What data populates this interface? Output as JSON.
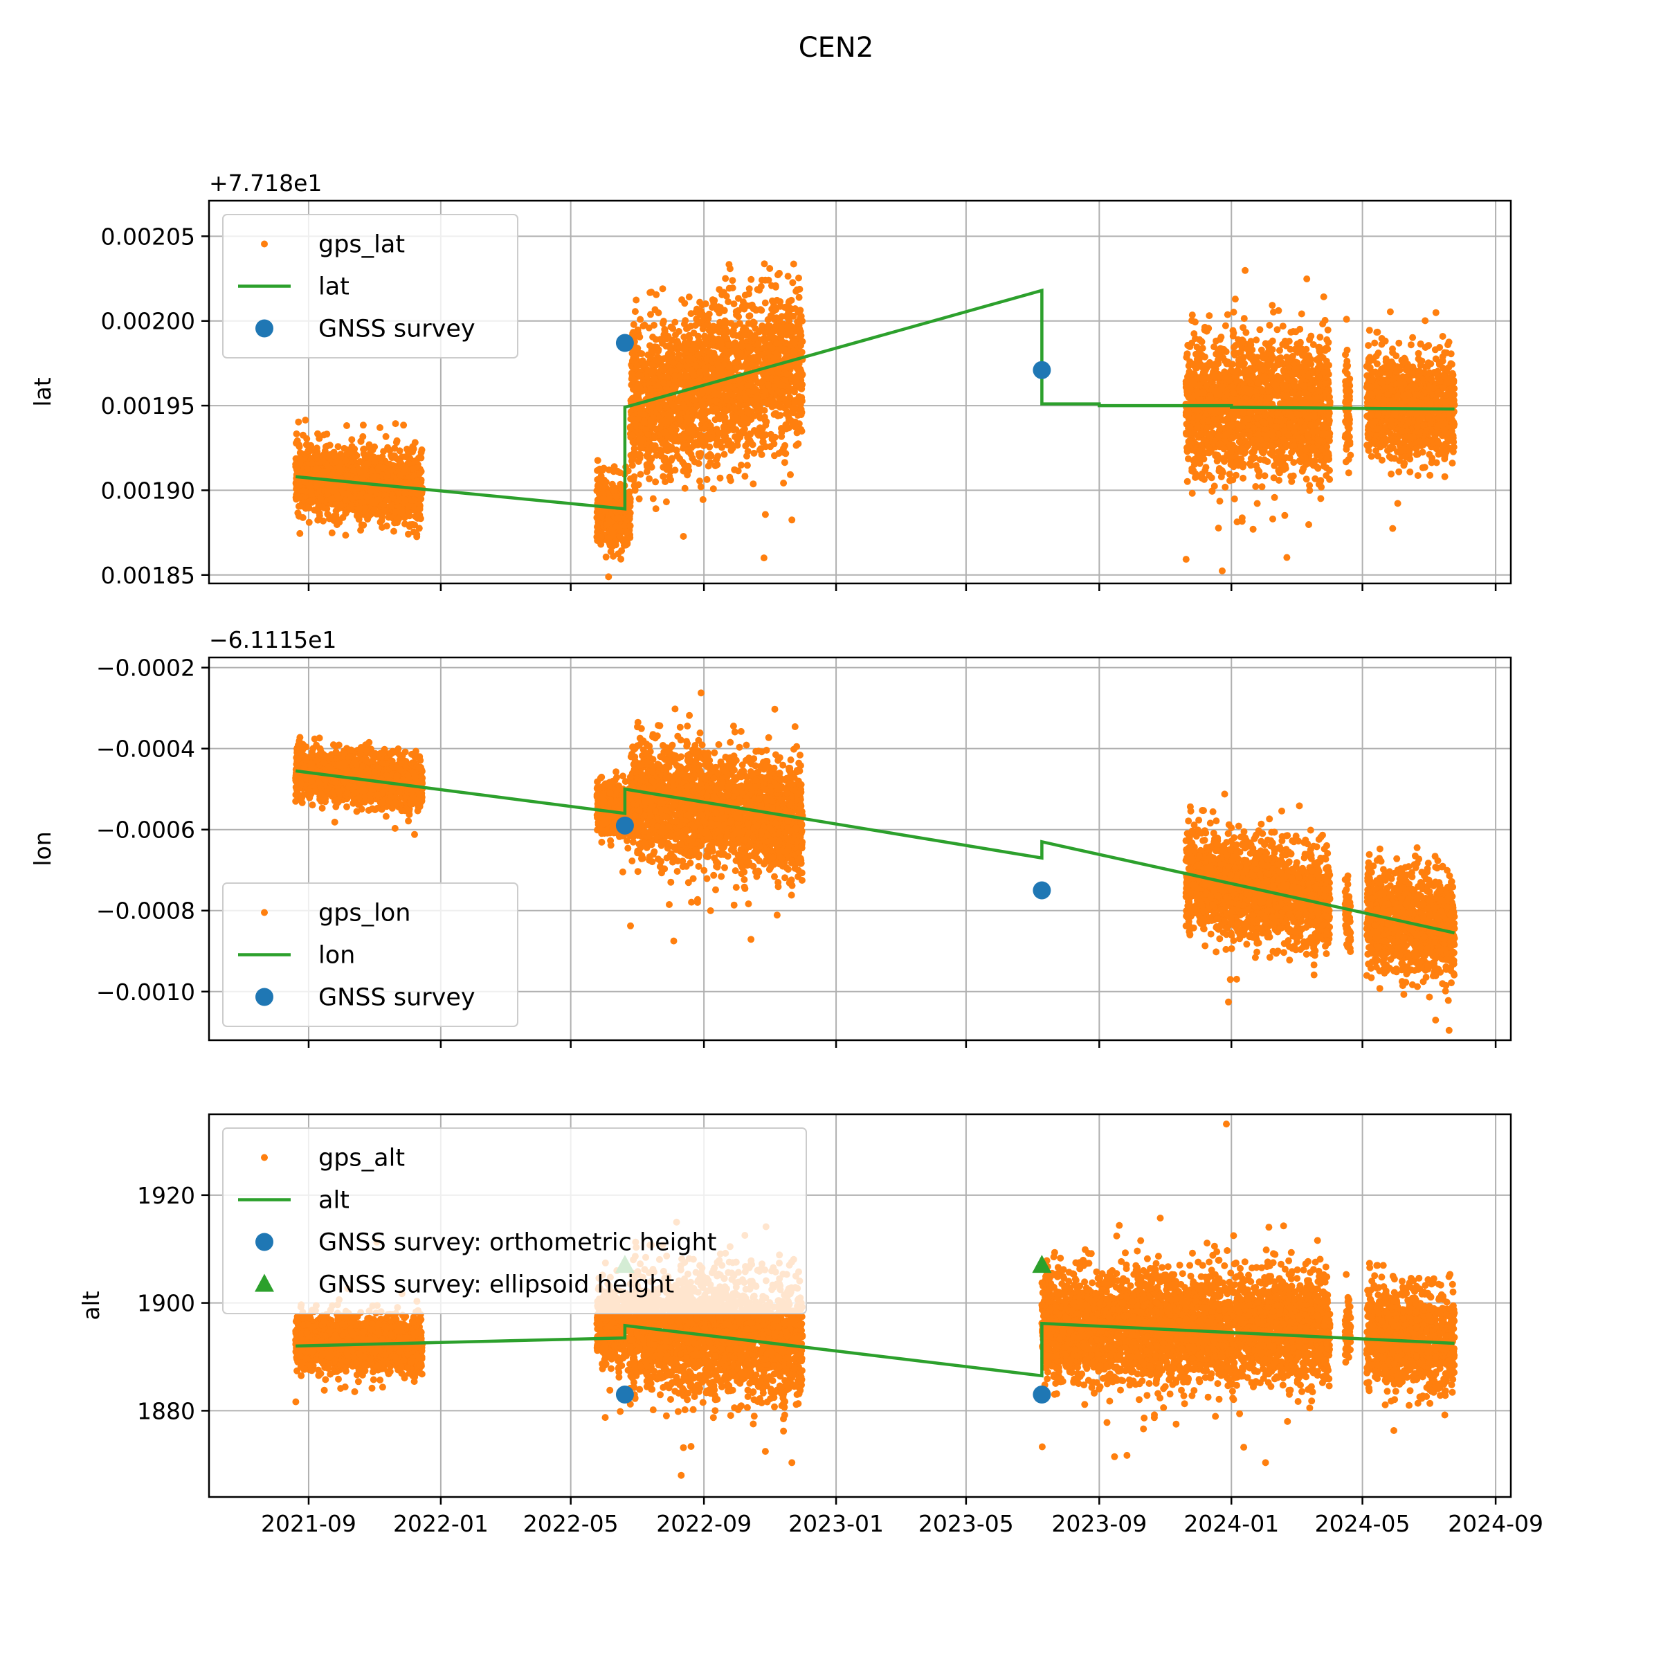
{
  "title": "CEN2",
  "chart_data": [
    {
      "type": "scatter",
      "key": "lat",
      "ylabel": "lat",
      "offset_label": "+7.718e1",
      "offset_value": 77.18,
      "ylim": [
        0.001845,
        0.002071
      ],
      "yticks": [
        0.00185,
        0.0019,
        0.00195,
        0.002,
        0.00205
      ],
      "ytick_labels": [
        "0.00185",
        "0.00190",
        "0.00195",
        "0.00200",
        "0.00205"
      ],
      "xlim": [
        "2021-06-01",
        "2024-09-15"
      ],
      "legend_position": "upper-left",
      "legend": [
        "gps_lat",
        "lat",
        "GNSS survey"
      ],
      "series": [
        {
          "name": "gps_lat",
          "kind": "points",
          "color": "#ff7f0e",
          "clusters": [
            {
              "x_range": [
                "2021-08-20",
                "2021-12-15"
              ],
              "center": [
                0.001908,
                0.0019
              ],
              "spread": 1e-05
            },
            {
              "x_range": [
                "2022-05-25",
                "2022-06-25"
              ],
              "center": [
                0.001888,
                0.001885
              ],
              "spread": 1e-05
            },
            {
              "x_range": [
                "2022-06-25",
                "2022-12-01"
              ],
              "center": [
                0.00195,
                0.001975
              ],
              "spread": 2.2e-05
            },
            {
              "x_range": [
                "2023-11-20",
                "2024-04-01"
              ],
              "center": [
                0.00195,
                0.001948
              ],
              "spread": 2e-05
            },
            {
              "x_range": [
                "2024-04-15",
                "2024-04-20"
              ],
              "center": [
                0.001952,
                0.001948
              ],
              "spread": 1.5e-05
            },
            {
              "x_range": [
                "2024-05-05",
                "2024-07-25"
              ],
              "center": [
                0.00195,
                0.001948
              ],
              "spread": 1.5e-05
            }
          ]
        },
        {
          "name": "lat",
          "kind": "line",
          "color": "#2ca02c",
          "points": [
            [
              "2021-08-20",
              0.001908
            ],
            [
              "2022-06-20",
              0.001889
            ],
            [
              "2022-06-20",
              0.001949
            ],
            [
              "2023-07-10",
              0.002018
            ],
            [
              "2023-07-10",
              0.001951
            ],
            [
              "2023-09-01",
              0.001951
            ],
            [
              "2023-09-01",
              0.00195
            ],
            [
              "2024-01-01",
              0.00195
            ],
            [
              "2024-01-01",
              0.001949
            ],
            [
              "2024-07-25",
              0.001948
            ]
          ]
        },
        {
          "name": "GNSS survey",
          "kind": "markers",
          "marker": "circle",
          "color": "#1f77b4",
          "points": [
            [
              "2022-06-20",
              0.001987
            ],
            [
              "2023-07-10",
              0.001971
            ]
          ]
        }
      ]
    },
    {
      "type": "scatter",
      "key": "lon",
      "ylabel": "lon",
      "offset_label": "−6.1115e1",
      "offset_value": -61.115,
      "ylim": [
        -0.00112,
        -0.000175
      ],
      "yticks": [
        -0.001,
        -0.0008,
        -0.0006,
        -0.0004,
        -0.0002
      ],
      "ytick_labels": [
        "−0.0010",
        "−0.0008",
        "−0.0006",
        "−0.0004",
        "−0.0002"
      ],
      "xlim": [
        "2021-06-01",
        "2024-09-15"
      ],
      "legend_position": "lower-left",
      "legend": [
        "gps_lon",
        "lon",
        "GNSS survey"
      ],
      "series": [
        {
          "name": "gps_lon",
          "kind": "points",
          "color": "#ff7f0e",
          "clusters": [
            {
              "x_range": [
                "2021-08-20",
                "2021-12-15"
              ],
              "center": [
                -0.000455,
                -0.00049
              ],
              "spread": 3e-05
            },
            {
              "x_range": [
                "2022-05-25",
                "2022-06-25"
              ],
              "center": [
                -0.00054,
                -0.00056
              ],
              "spread": 3e-05
            },
            {
              "x_range": [
                "2022-06-25",
                "2022-12-01"
              ],
              "center": [
                -0.00052,
                -0.00058
              ],
              "spread": 7e-05
            },
            {
              "x_range": [
                "2023-11-20",
                "2024-04-01"
              ],
              "center": [
                -0.00072,
                -0.00078
              ],
              "spread": 6e-05
            },
            {
              "x_range": [
                "2024-04-15",
                "2024-04-20"
              ],
              "center": [
                -0.0008,
                -0.00083
              ],
              "spread": 4e-05
            },
            {
              "x_range": [
                "2024-05-05",
                "2024-07-25"
              ],
              "center": [
                -0.00081,
                -0.00085
              ],
              "spread": 6e-05
            }
          ]
        },
        {
          "name": "lon",
          "kind": "line",
          "color": "#2ca02c",
          "points": [
            [
              "2021-08-20",
              -0.000455
            ],
            [
              "2022-06-20",
              -0.00056
            ],
            [
              "2022-06-20",
              -0.0005
            ],
            [
              "2023-07-10",
              -0.00067
            ],
            [
              "2023-07-10",
              -0.00063
            ],
            [
              "2024-07-25",
              -0.000855
            ]
          ]
        },
        {
          "name": "GNSS survey",
          "kind": "markers",
          "marker": "circle",
          "color": "#1f77b4",
          "points": [
            [
              "2022-06-20",
              -0.00059
            ],
            [
              "2023-07-10",
              -0.00075
            ]
          ]
        }
      ]
    },
    {
      "type": "scatter",
      "key": "alt",
      "ylabel": "alt",
      "offset_label": "",
      "offset_value": 0,
      "ylim": [
        1864,
        1935
      ],
      "yticks": [
        1880,
        1900,
        1920
      ],
      "ytick_labels": [
        "1880",
        "1900",
        "1920"
      ],
      "xlim": [
        "2021-06-01",
        "2024-09-15"
      ],
      "xticks": [
        "2021-09-01",
        "2022-01-01",
        "2022-05-01",
        "2022-09-01",
        "2023-01-01",
        "2023-05-01",
        "2023-09-01",
        "2024-01-01",
        "2024-05-01",
        "2024-09-01"
      ],
      "xtick_labels": [
        "2021-09",
        "2022-01",
        "2022-05",
        "2022-09",
        "2023-01",
        "2023-05",
        "2023-09",
        "2024-01",
        "2024-05",
        "2024-09"
      ],
      "legend_position": "upper-left",
      "legend": [
        "gps_alt",
        "alt",
        "GNSS survey: orthometric height",
        "GNSS survey: ellipsoid height"
      ],
      "series": [
        {
          "name": "gps_alt",
          "kind": "points",
          "color": "#ff7f0e",
          "clusters": [
            {
              "x_range": [
                "2021-08-20",
                "2021-12-15"
              ],
              "center": [
                1893,
                1892
              ],
              "spread": 2.5
            },
            {
              "x_range": [
                "2022-05-25",
                "2022-06-25"
              ],
              "center": [
                1896,
                1895
              ],
              "spread": 3.5
            },
            {
              "x_range": [
                "2022-06-25",
                "2022-12-01"
              ],
              "center": [
                1895,
                1893
              ],
              "spread": 5.5
            },
            {
              "x_range": [
                "2023-07-10",
                "2024-04-01"
              ],
              "center": [
                1896,
                1895
              ],
              "spread": 5.0
            },
            {
              "x_range": [
                "2024-04-15",
                "2024-04-20"
              ],
              "center": [
                1895,
                1895
              ],
              "spread": 4.0
            },
            {
              "x_range": [
                "2024-05-05",
                "2024-07-25"
              ],
              "center": [
                1894,
                1893
              ],
              "spread": 4.5
            }
          ]
        },
        {
          "name": "alt",
          "kind": "line",
          "color": "#2ca02c",
          "points": [
            [
              "2021-08-20",
              1892
            ],
            [
              "2022-06-20",
              1893.5
            ],
            [
              "2022-06-20",
              1895.8
            ],
            [
              "2023-07-10",
              1886.5
            ],
            [
              "2023-07-10",
              1896.2
            ],
            [
              "2024-07-25",
              1892.5
            ]
          ]
        },
        {
          "name": "GNSS survey: orthometric height",
          "kind": "markers",
          "marker": "circle",
          "color": "#1f77b4",
          "points": [
            [
              "2022-06-20",
              1883
            ],
            [
              "2023-07-10",
              1883
            ]
          ]
        },
        {
          "name": "GNSS survey: ellipsoid height",
          "kind": "markers",
          "marker": "triangle",
          "color": "#2ca02c",
          "points": [
            [
              "2022-06-20",
              1907
            ],
            [
              "2023-07-10",
              1907
            ]
          ]
        }
      ]
    }
  ]
}
